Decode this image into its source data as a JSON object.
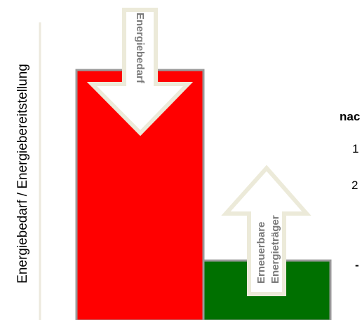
{
  "chart_data": {
    "type": "bar",
    "ylabel": "Energiebedarf / Energiebereitstellung",
    "categories": [
      "",
      ""
    ],
    "series": [
      {
        "values": [
          100,
          24
        ],
        "colors": [
          "#ff0000",
          "#007000"
        ]
      }
    ],
    "ylim": [
      0,
      100
    ],
    "grid": false,
    "arrow_labels": {
      "down": "Energiebedarf",
      "up_line1": "Erneuerbare",
      "up_line2": "Energieträger"
    },
    "side_text": {
      "heading": "nac",
      "item1": "1",
      "item2": "2",
      "dash": "-"
    }
  }
}
